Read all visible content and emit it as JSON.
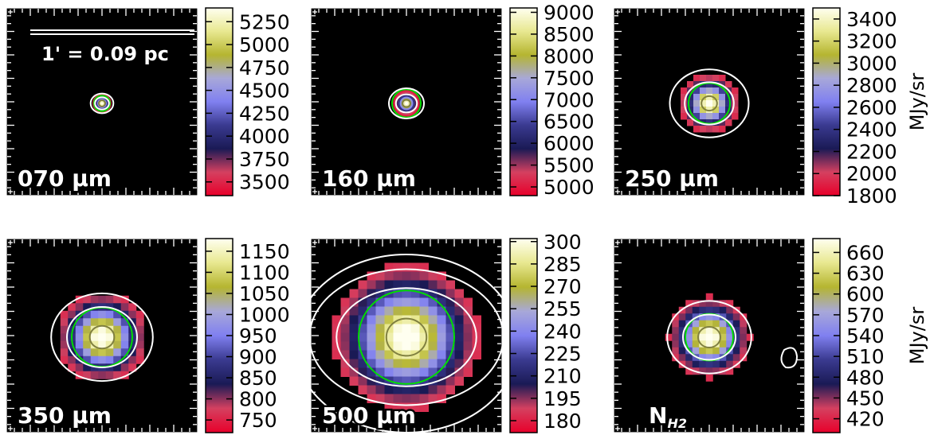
{
  "chart_data": [
    {
      "type": "heatmap",
      "label": "070 μm",
      "scale_text": "1' = 0.09 pc",
      "colorbar_ticks": [
        "5250",
        "5000",
        "4750",
        "4500",
        "4250",
        "4000",
        "3750",
        "3500"
      ],
      "colorbar_range": [
        3350,
        5400
      ],
      "unit": "",
      "peak": 5400,
      "sigma_px": 5,
      "blob_grid_cells": 0,
      "contours_white": [
        8,
        13
      ],
      "ellipse_green": 10
    },
    {
      "type": "heatmap",
      "label": "160 μm",
      "colorbar_ticks": [
        "9000",
        "8500",
        "8000",
        "7500",
        "7000",
        "6500",
        "6000",
        "5500",
        "5000"
      ],
      "colorbar_range": [
        4800,
        9100
      ],
      "unit": "",
      "peak": 9100,
      "sigma_px": 7,
      "blob_grid_cells": 0,
      "contours_white": [
        12,
        20
      ],
      "ellipse_green": 18
    },
    {
      "type": "heatmap",
      "label": "250 μm",
      "colorbar_ticks": [
        "3400",
        "3200",
        "3000",
        "2800",
        "2600",
        "2400",
        "2200",
        "2000",
        "1800"
      ],
      "colorbar_range": [
        1800,
        3500
      ],
      "unit": "MJy/sr",
      "peak": 3500,
      "sigma_px": 14,
      "blob_grid_cells": 9,
      "contours_white": [
        28,
        45
      ],
      "ellipse_green": 26
    },
    {
      "type": "heatmap",
      "label": "350 μm",
      "colorbar_ticks": [
        "1150",
        "1100",
        "1050",
        "1000",
        "950",
        "900",
        "850",
        "800",
        "750"
      ],
      "colorbar_range": [
        720,
        1180
      ],
      "unit": "",
      "peak": 1180,
      "sigma_px": 22,
      "blob_grid_cells": 10,
      "contours_white": [
        40,
        58
      ],
      "ellipse_green": 38
    },
    {
      "type": "heatmap",
      "label": "500 μm",
      "colorbar_ticks": [
        "300",
        "285",
        "270",
        "255",
        "240",
        "225",
        "210",
        "195",
        "180"
      ],
      "colorbar_range": [
        172,
        302
      ],
      "unit": "",
      "peak": 302,
      "sigma_px": 36,
      "blob_grid_cells": 13,
      "contours_white": [
        65,
        90
      ],
      "ellipse_green": 60
    },
    {
      "type": "heatmap",
      "label": "N",
      "label_sub": "H2",
      "colorbar_ticks": [
        "660",
        "630",
        "600",
        "570",
        "540",
        "510",
        "480",
        "450",
        "420"
      ],
      "colorbar_range": [
        400,
        680
      ],
      "unit": "MJy/sr",
      "peak": 680,
      "sigma_px": 20,
      "blob_grid_cells": 11,
      "contours_white": [
        30,
        48
      ],
      "ellipse_green": 30
    }
  ],
  "colors": {
    "stops": [
      "#e8002a",
      "#d44060",
      "#1a1a55",
      "#3a3a90",
      "#8080f0",
      "#a8a8d8",
      "#b5b530",
      "#e8e890",
      "#fffff0"
    ]
  }
}
